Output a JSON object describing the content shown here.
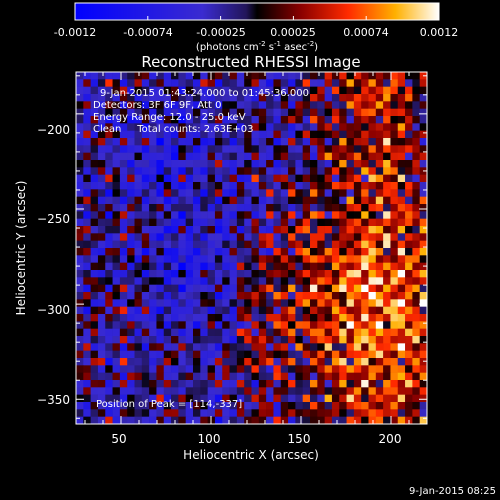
{
  "colorbar": {
    "ticks": [
      "-0.0012",
      "-0.00074",
      "-0.00025",
      "0.00025",
      "0.00074",
      "0.0012"
    ],
    "unit_base": "(photons cm",
    "unit_exp1": "-2",
    "unit_mid": " s",
    "unit_exp2": "-1",
    "unit_mid2": " asec",
    "unit_exp3": "-2",
    "unit_end": ")",
    "range": [
      -0.0012,
      0.0012
    ]
  },
  "chart_data": {
    "type": "heatmap",
    "title": "Reconstructed RHESSI Image",
    "xlabel": "Heliocentric X (arcsec)",
    "ylabel": "Heliocentric Y (arcsec)",
    "xlim": [
      25,
      220
    ],
    "ylim": [
      -363,
      -178
    ],
    "x_ticks": [
      50,
      100,
      150,
      200
    ],
    "y_ticks": [
      -200,
      -250,
      -300,
      -350
    ],
    "x_tick_labels": [
      "50",
      "100",
      "150",
      "200"
    ],
    "y_tick_labels": [
      "−200",
      "−250",
      "−300",
      "−350"
    ],
    "grid": false,
    "annotations": [
      "9-Jan-2015 01:43:24.000 to 01:45:36.000",
      "Detectors: 3F 6F 9F, Att 0",
      "Energy Range: 12.0 - 25.0 keV",
      "Clean     Total counts: 2.63E+03"
    ],
    "peak_label": "Position of Peak = [114,-337]",
    "peak_position": [
      114,
      -337
    ]
  },
  "timestamp": "9-Jan-2015 08:25"
}
